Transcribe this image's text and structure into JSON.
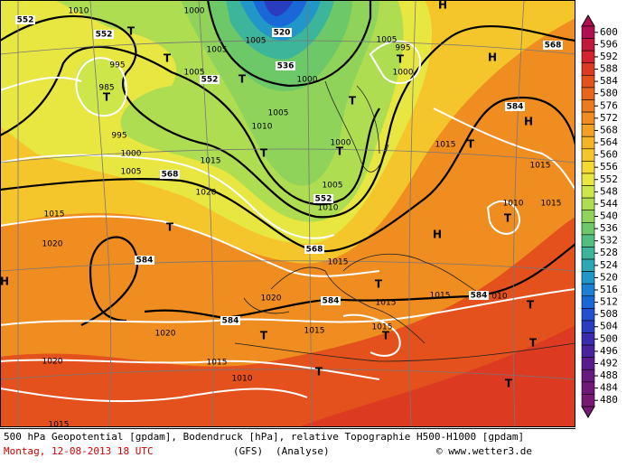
{
  "caption": {
    "title": "500 hPa Geopotential [gpdam], Bodendruck [hPa], relative Topographie H500-H1000 [gpdam]",
    "date": "Montag, 12-08-2013  18 UTC",
    "model": "(GFS)",
    "run": "(Analyse)",
    "source": "© www.wetter3.de"
  },
  "color_scale": {
    "levels": [
      600,
      596,
      592,
      588,
      584,
      580,
      576,
      572,
      568,
      564,
      560,
      556,
      552,
      548,
      544,
      540,
      536,
      532,
      528,
      524,
      520,
      516,
      512,
      508,
      504,
      500,
      496,
      492,
      488,
      484,
      480
    ],
    "colors": [
      "#b0104f",
      "#c2183c",
      "#d2232e",
      "#dd3a22",
      "#e4511c",
      "#e8651c",
      "#ec7a1e",
      "#ef8d20",
      "#f1a124",
      "#f3b428",
      "#f5c62c",
      "#f4d934",
      "#e8e640",
      "#cde64a",
      "#afdd52",
      "#8fd35a",
      "#6dc868",
      "#52bf80",
      "#3cb59a",
      "#2ca8b4",
      "#2196c8",
      "#1b80d4",
      "#1a68d8",
      "#2050d0",
      "#2a3cc0",
      "#3a2cae",
      "#4a229c",
      "#5a1c8c",
      "#661a80",
      "#701878",
      "#781872"
    ]
  },
  "map_labels": [
    "552",
    "1010",
    "552",
    "T",
    "1000",
    "T",
    "995",
    "985",
    "T",
    "995",
    "1000",
    "1005",
    "568",
    "1005",
    "1005",
    "552",
    "T",
    "1000",
    "520",
    "1005",
    "536",
    "1005",
    "1010",
    "T",
    "1015",
    "1020",
    "552",
    "1010",
    "1005",
    "1000",
    "T",
    "T",
    "1005",
    "995",
    "T",
    "1000",
    "H",
    "568",
    "H",
    "584",
    "H",
    "T",
    "1015",
    "1015",
    "1010",
    "T",
    "1015",
    "H",
    "568",
    "1015",
    "T",
    "1015",
    "584",
    "1015",
    "584",
    "010",
    "1015",
    "1020",
    "T",
    "584",
    "H",
    "1020",
    "584",
    "T",
    "1015",
    "1015",
    "T",
    "1020",
    "1020",
    "1015",
    "T",
    "1010",
    "T",
    "T",
    "T",
    "1015"
  ]
}
